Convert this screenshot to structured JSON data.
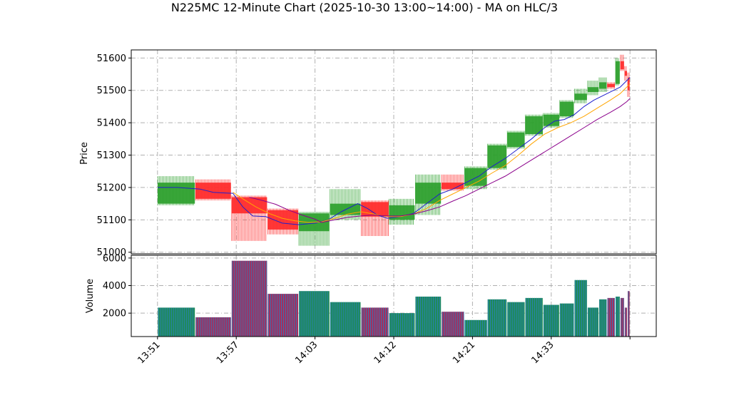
{
  "title": "N225MC 12-Minute Chart (2025-10-30 13:00~14:00) - MA on HLC/3",
  "colors": {
    "up": "#2ca02c",
    "down": "#ff2a2a",
    "ma_fast": "#1f1fcc",
    "ma_mid": "#ffa500",
    "ma_slow": "#8b008b",
    "grid": "#b0b0b0"
  },
  "chart_data": {
    "type": "candlestick",
    "title": "N225MC 12-Minute Chart (2025-10-30 13:00~14:00) - MA on HLC/3",
    "price_axis": {
      "label": "Price",
      "ylim": [
        50995,
        51625
      ],
      "ticks": [
        51000,
        51100,
        51200,
        51300,
        51400,
        51500,
        51600
      ]
    },
    "volume_axis": {
      "label": "Volume",
      "ylim": [
        300,
        6200
      ],
      "ticks": [
        2000,
        4000,
        6000
      ]
    },
    "x_ticks": [
      {
        "label": "13:51",
        "x": 0
      },
      {
        "label": "13:57",
        "x": 24
      },
      {
        "label": "14:03",
        "x": 48
      },
      {
        "label": "14:12",
        "x": 72
      },
      {
        "label": "14:21",
        "x": 96
      },
      {
        "label": "14:33",
        "x": 120
      },
      {
        "label": "",
        "x": 144
      }
    ],
    "x_range": [
      -8,
      152
    ],
    "grid": true,
    "candles": [
      {
        "x0": 0,
        "x1": 11.5,
        "open": 51150,
        "close": 51215,
        "high": 51235,
        "low": 51145,
        "volume": 2400
      },
      {
        "x0": 11.5,
        "x1": 22.5,
        "open": 51215,
        "close": 51165,
        "high": 51225,
        "low": 51160,
        "volume": 1700
      },
      {
        "x0": 22.5,
        "x1": 33.5,
        "open": 51170,
        "close": 51120,
        "high": 51175,
        "low": 51035,
        "volume": 5800
      },
      {
        "x0": 33.5,
        "x1": 43,
        "open": 51130,
        "close": 51070,
        "high": 51135,
        "low": 51055,
        "volume": 3400
      },
      {
        "x0": 43,
        "x1": 52.5,
        "open": 51065,
        "close": 51120,
        "high": 51125,
        "low": 51020,
        "volume": 3600
      },
      {
        "x0": 52.5,
        "x1": 62,
        "open": 51115,
        "close": 51150,
        "high": 51195,
        "low": 51100,
        "volume": 2800
      },
      {
        "x0": 62,
        "x1": 70.5,
        "open": 51155,
        "close": 51110,
        "high": 51160,
        "low": 51050,
        "volume": 2400
      },
      {
        "x0": 70.5,
        "x1": 78.5,
        "open": 51100,
        "close": 51145,
        "high": 51165,
        "low": 51085,
        "volume": 2000
      },
      {
        "x0": 78.5,
        "x1": 86.5,
        "open": 51150,
        "close": 51215,
        "high": 51240,
        "low": 51115,
        "volume": 3200
      },
      {
        "x0": 86.5,
        "x1": 93.5,
        "open": 51215,
        "close": 51195,
        "high": 51240,
        "low": 51190,
        "volume": 2100
      },
      {
        "x0": 93.5,
        "x1": 100.5,
        "open": 51205,
        "close": 51260,
        "high": 51265,
        "low": 51195,
        "volume": 1500
      },
      {
        "x0": 100.5,
        "x1": 106.5,
        "open": 51260,
        "close": 51330,
        "high": 51335,
        "low": 51255,
        "volume": 3000
      },
      {
        "x0": 106.5,
        "x1": 112,
        "open": 51325,
        "close": 51370,
        "high": 51375,
        "low": 51320,
        "volume": 2800
      },
      {
        "x0": 112,
        "x1": 117.5,
        "open": 51365,
        "close": 51420,
        "high": 51425,
        "low": 51360,
        "volume": 3100
      },
      {
        "x0": 117.5,
        "x1": 122.5,
        "open": 51390,
        "close": 51425,
        "high": 51430,
        "low": 51385,
        "volume": 2600
      },
      {
        "x0": 122.5,
        "x1": 127,
        "open": 51420,
        "close": 51465,
        "high": 51470,
        "low": 51415,
        "volume": 2700
      },
      {
        "x0": 127,
        "x1": 131,
        "open": 51470,
        "close": 51490,
        "high": 51505,
        "low": 51460,
        "volume": 4400
      },
      {
        "x0": 131,
        "x1": 134.5,
        "open": 51495,
        "close": 51510,
        "high": 51530,
        "low": 51485,
        "volume": 2400
      },
      {
        "x0": 134.5,
        "x1": 137,
        "open": 51505,
        "close": 51525,
        "high": 51540,
        "low": 51495,
        "volume": 3000
      },
      {
        "x0": 137,
        "x1": 139.5,
        "open": 51520,
        "close": 51510,
        "high": 51525,
        "low": 51505,
        "volume": 3100
      },
      {
        "x0": 139.5,
        "x1": 141,
        "open": 51520,
        "close": 51590,
        "high": 51600,
        "low": 51515,
        "volume": 3200
      },
      {
        "x0": 141,
        "x1": 142.3,
        "open": 51590,
        "close": 51565,
        "high": 51610,
        "low": 51560,
        "volume": 3100
      },
      {
        "x0": 142.3,
        "x1": 143.2,
        "open": 51560,
        "close": 51545,
        "high": 51575,
        "low": 51530,
        "volume": 2400
      },
      {
        "x0": 143.2,
        "x1": 144,
        "open": 51540,
        "close": 51500,
        "high": 51555,
        "low": 51480,
        "volume": 3600
      }
    ],
    "moving_averages": [
      {
        "key": "fast",
        "color": "#1f1fcc",
        "points": [
          [
            0,
            51200
          ],
          [
            6,
            51200
          ],
          [
            13,
            51195
          ],
          [
            17,
            51185
          ],
          [
            21,
            51183
          ],
          [
            23,
            51182
          ],
          [
            26,
            51140
          ],
          [
            29,
            51112
          ],
          [
            33,
            51110
          ],
          [
            38,
            51090
          ],
          [
            43,
            51085
          ],
          [
            48,
            51090
          ],
          [
            52,
            51100
          ],
          [
            56,
            51125
          ],
          [
            61,
            51150
          ],
          [
            64,
            51135
          ],
          [
            67,
            51115
          ],
          [
            70,
            51105
          ],
          [
            74,
            51110
          ],
          [
            78,
            51120
          ],
          [
            82,
            51150
          ],
          [
            86,
            51180
          ],
          [
            90,
            51195
          ],
          [
            94,
            51215
          ],
          [
            98,
            51235
          ],
          [
            102,
            51265
          ],
          [
            106,
            51290
          ],
          [
            110,
            51320
          ],
          [
            114,
            51350
          ],
          [
            118,
            51385
          ],
          [
            121,
            51405
          ],
          [
            124,
            51410
          ],
          [
            127,
            51425
          ],
          [
            130,
            51450
          ],
          [
            133,
            51470
          ],
          [
            136,
            51485
          ],
          [
            139,
            51500
          ],
          [
            141,
            51510
          ],
          [
            143,
            51530
          ],
          [
            144,
            51540
          ]
        ]
      },
      {
        "key": "mid",
        "color": "#ffa500",
        "points": [
          [
            23,
            51185
          ],
          [
            26,
            51165
          ],
          [
            30,
            51140
          ],
          [
            34,
            51120
          ],
          [
            38,
            51105
          ],
          [
            42,
            51097
          ],
          [
            46,
            51092
          ],
          [
            50,
            51094
          ],
          [
            54,
            51105
          ],
          [
            58,
            51118
          ],
          [
            62,
            51125
          ],
          [
            66,
            51118
          ],
          [
            70,
            51110
          ],
          [
            74,
            51110
          ],
          [
            78,
            51118
          ],
          [
            82,
            51135
          ],
          [
            86,
            51160
          ],
          [
            90,
            51180
          ],
          [
            94,
            51200
          ],
          [
            98,
            51220
          ],
          [
            102,
            51245
          ],
          [
            106,
            51268
          ],
          [
            110,
            51300
          ],
          [
            114,
            51335
          ],
          [
            118,
            51365
          ],
          [
            122,
            51385
          ],
          [
            126,
            51400
          ],
          [
            130,
            51420
          ],
          [
            134,
            51445
          ],
          [
            138,
            51470
          ],
          [
            141,
            51490
          ],
          [
            143,
            51510
          ],
          [
            144,
            51520
          ]
        ]
      },
      {
        "key": "slow",
        "color": "#8b008b",
        "points": [
          [
            28,
            51170
          ],
          [
            32,
            51160
          ],
          [
            36,
            51148
          ],
          [
            40,
            51130
          ],
          [
            44,
            51115
          ],
          [
            48,
            51102
          ],
          [
            50,
            51092
          ],
          [
            54,
            51100
          ],
          [
            58,
            51108
          ],
          [
            62,
            51112
          ],
          [
            66,
            51115
          ],
          [
            70,
            51112
          ],
          [
            74,
            51112
          ],
          [
            78,
            51118
          ],
          [
            82,
            51128
          ],
          [
            86,
            51140
          ],
          [
            90,
            51158
          ],
          [
            94,
            51175
          ],
          [
            98,
            51195
          ],
          [
            102,
            51215
          ],
          [
            106,
            51235
          ],
          [
            110,
            51260
          ],
          [
            114,
            51285
          ],
          [
            118,
            51310
          ],
          [
            122,
            51335
          ],
          [
            126,
            51360
          ],
          [
            130,
            51385
          ],
          [
            134,
            51410
          ],
          [
            138,
            51432
          ],
          [
            141,
            51450
          ],
          [
            143,
            51465
          ],
          [
            144,
            51475
          ]
        ]
      }
    ]
  }
}
